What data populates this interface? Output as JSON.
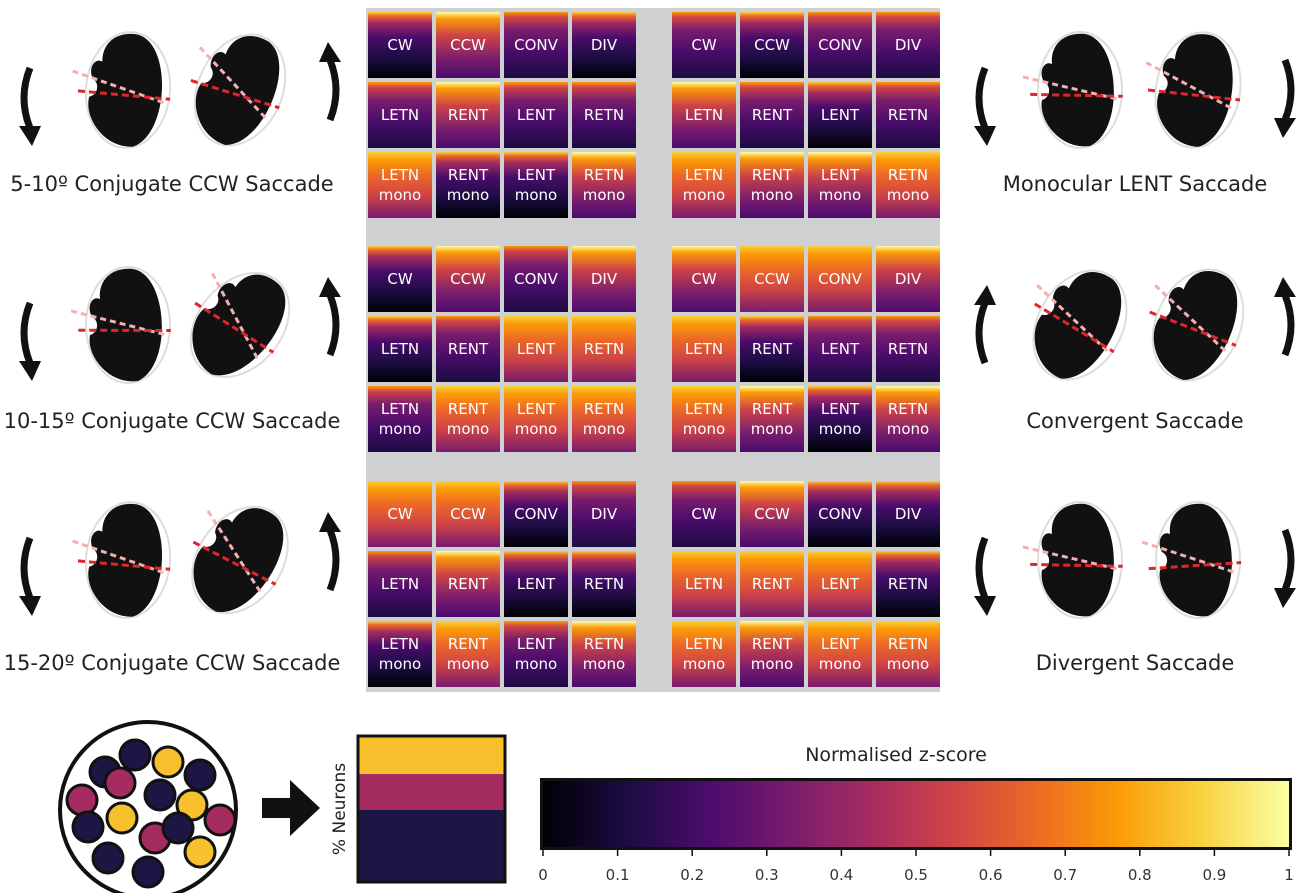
{
  "left_labels": [
    "5-10º Conjugate CCW Saccade",
    "10-15º Conjugate CCW Saccade",
    "15-20º Conjugate CCW Saccade"
  ],
  "right_labels": [
    "Monocular LENT Saccade",
    "Convergent Saccade",
    "Divergent Saccade"
  ],
  "tile_labels": [
    [
      "CW",
      "CCW",
      "CONV",
      "DIV"
    ],
    [
      "LETN",
      "RENT",
      "LENT",
      "RETN"
    ],
    [
      "LETN mono",
      "RENT mono",
      "LENT mono",
      "RETN mono"
    ]
  ],
  "legend": {
    "ylabel": "% Neurons"
  },
  "colorbar": {
    "title": "Normalised z-score",
    "xlim": [
      0,
      1
    ],
    "xticks": [
      0,
      0.1,
      0.2,
      0.3,
      0.4,
      0.5,
      0.6,
      0.7,
      0.8,
      0.9,
      1
    ]
  }
}
